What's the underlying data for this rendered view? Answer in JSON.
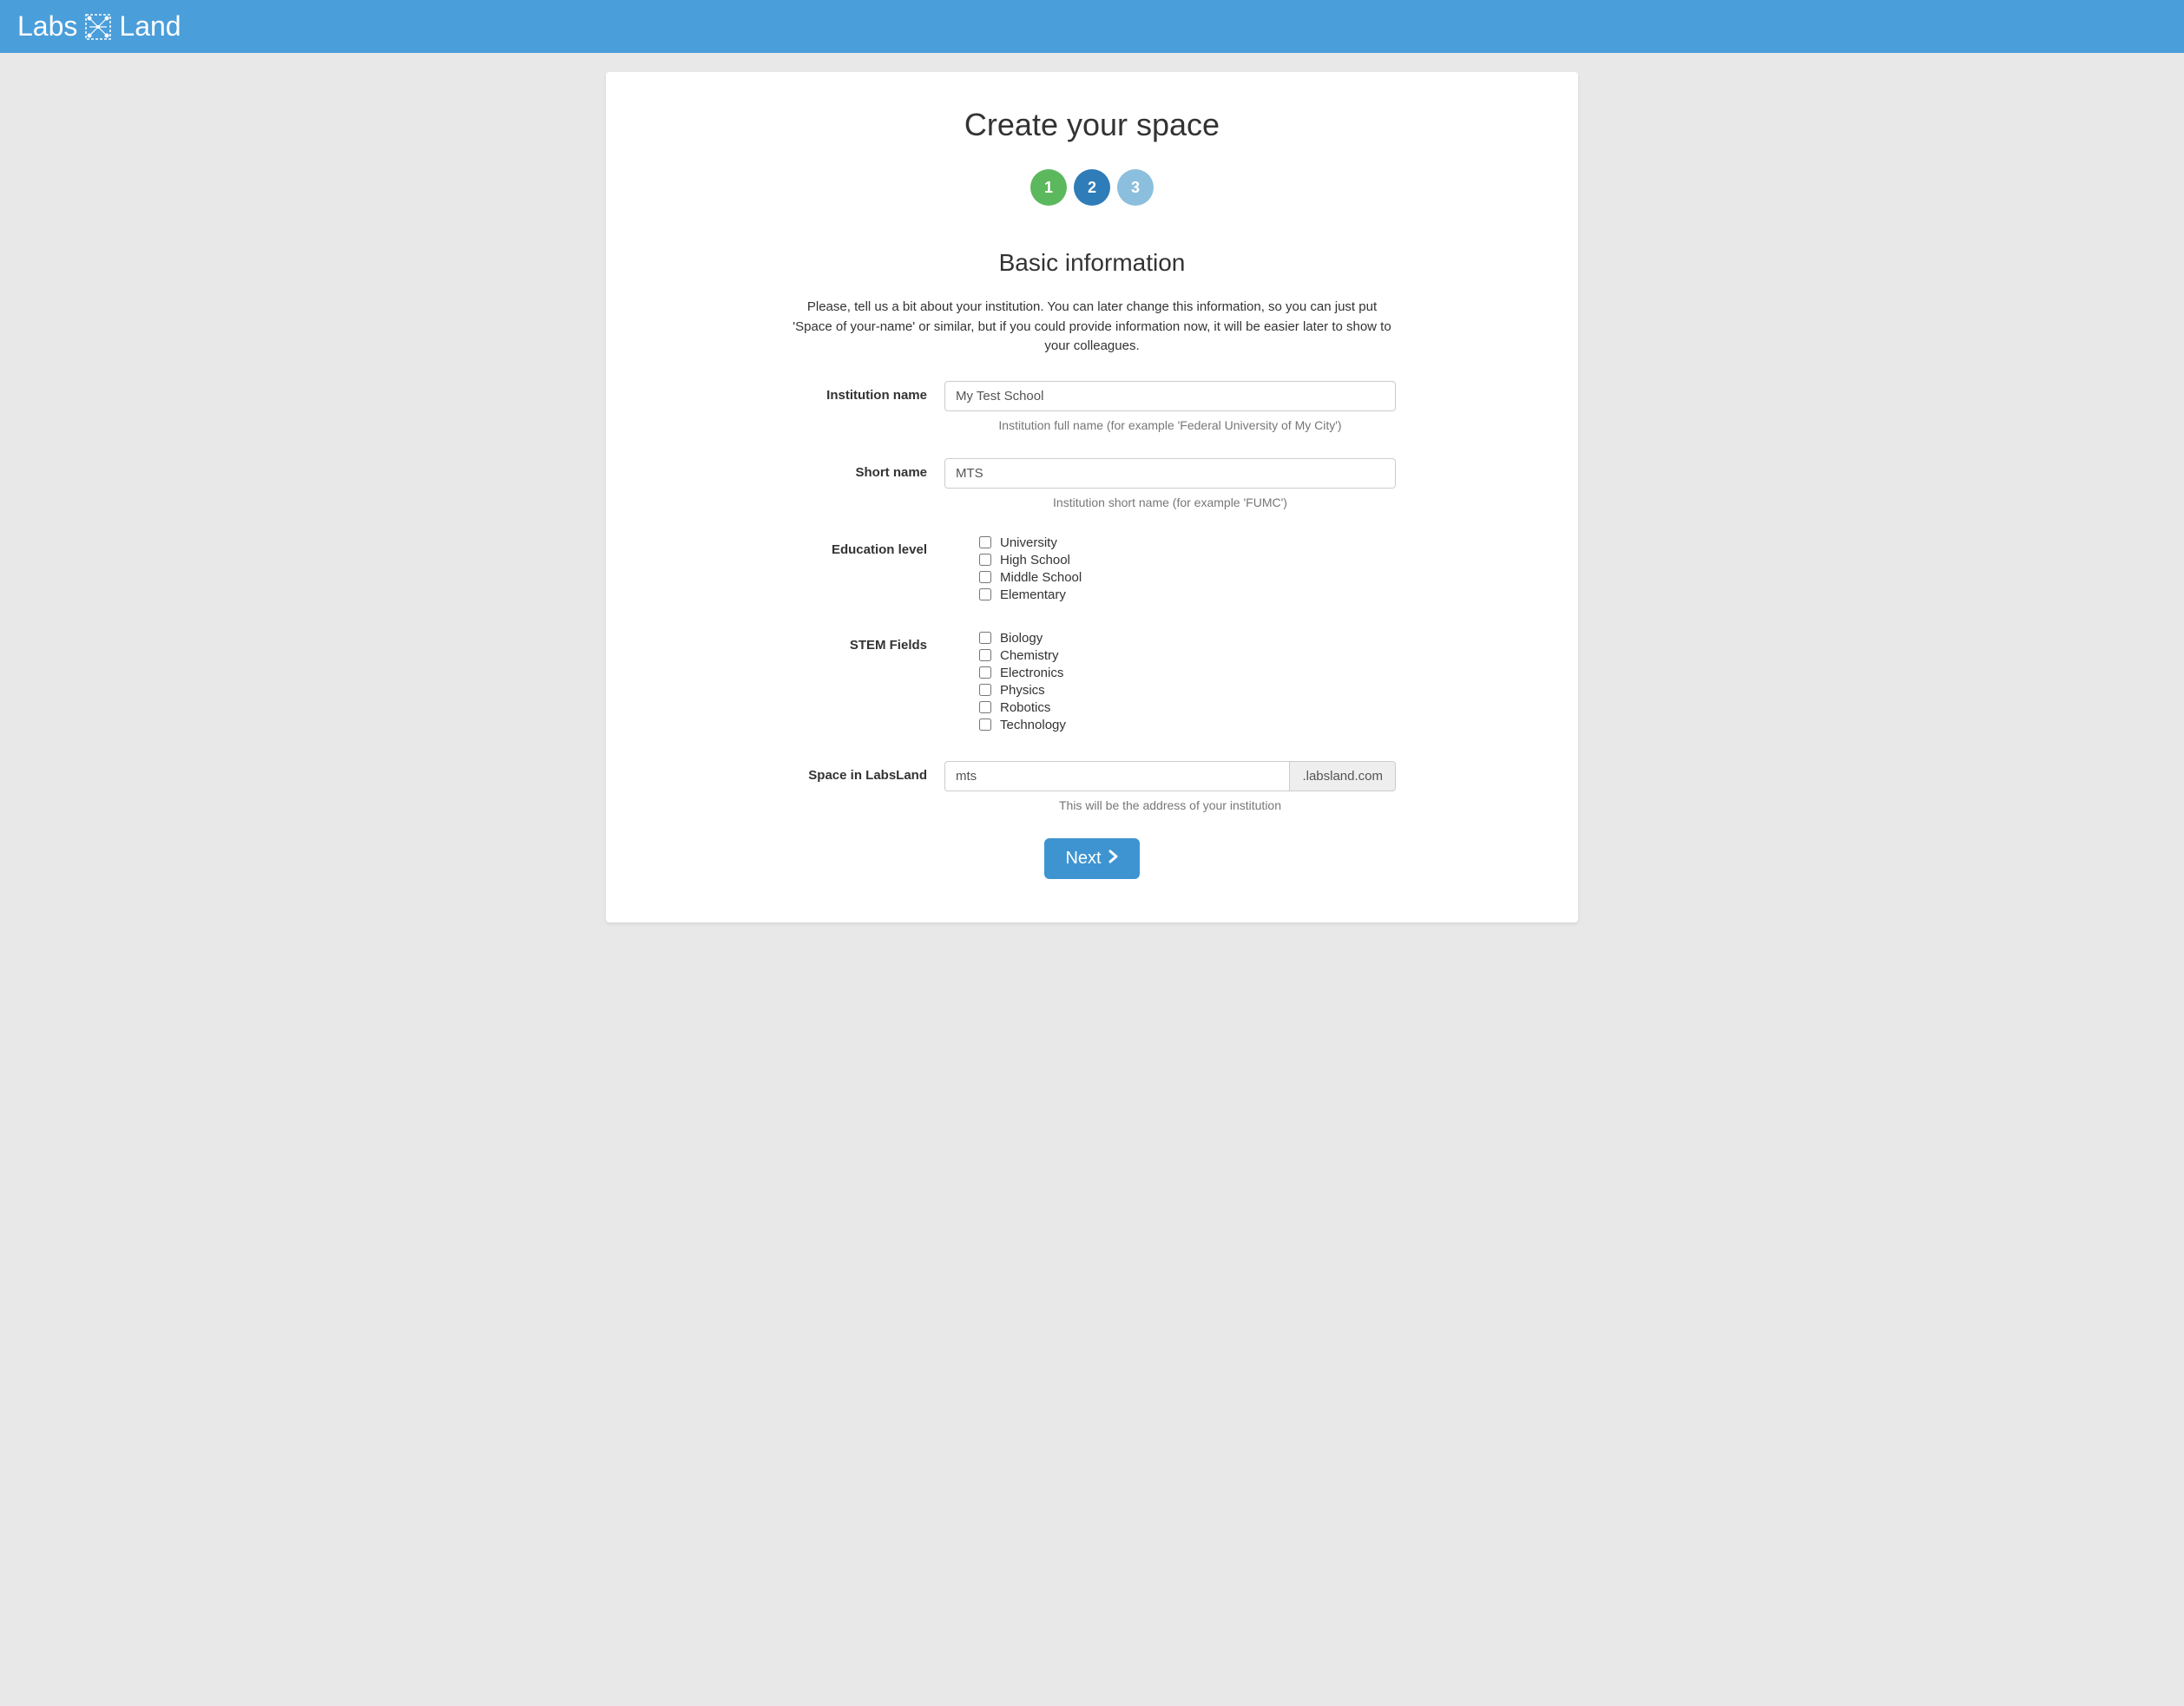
{
  "header": {
    "logo_text_1": "Labs",
    "logo_text_2": "Land",
    "header_bg_color": "#4a9eda"
  },
  "page": {
    "title": "Create your space",
    "background_color": "#e8e8e8",
    "card_bg_color": "#ffffff"
  },
  "steps": {
    "step1": {
      "label": "1",
      "color": "#5cb85c"
    },
    "step2": {
      "label": "2",
      "color": "#2e7cb8"
    },
    "step3": {
      "label": "3",
      "color": "#8bbfdd"
    }
  },
  "section": {
    "title": "Basic information",
    "intro": "Please, tell us a bit about your institution. You can later change this information, so you can just put 'Space of your-name' or similar, but if you could provide information now, it will be easier later to show to your colleagues."
  },
  "form": {
    "institution_name": {
      "label": "Institution name",
      "value": "My Test School",
      "help": "Institution full name (for example 'Federal University of My City')"
    },
    "short_name": {
      "label": "Short name",
      "value": "MTS",
      "help": "Institution short name (for example 'FUMC')"
    },
    "education_level": {
      "label": "Education level",
      "options": [
        "University",
        "High School",
        "Middle School",
        "Elementary"
      ]
    },
    "stem_fields": {
      "label": "STEM Fields",
      "options": [
        "Biology",
        "Chemistry",
        "Electronics",
        "Physics",
        "Robotics",
        "Technology"
      ]
    },
    "space": {
      "label": "Space in LabsLand",
      "value": "mts",
      "suffix": ".labsland.com",
      "help": "This will be the address of your institution"
    }
  },
  "buttons": {
    "next": "Next"
  },
  "colors": {
    "primary": "#3e94d1",
    "text": "#333333",
    "muted": "#777777",
    "border": "#cccccc",
    "addon_bg": "#eeeeee"
  }
}
